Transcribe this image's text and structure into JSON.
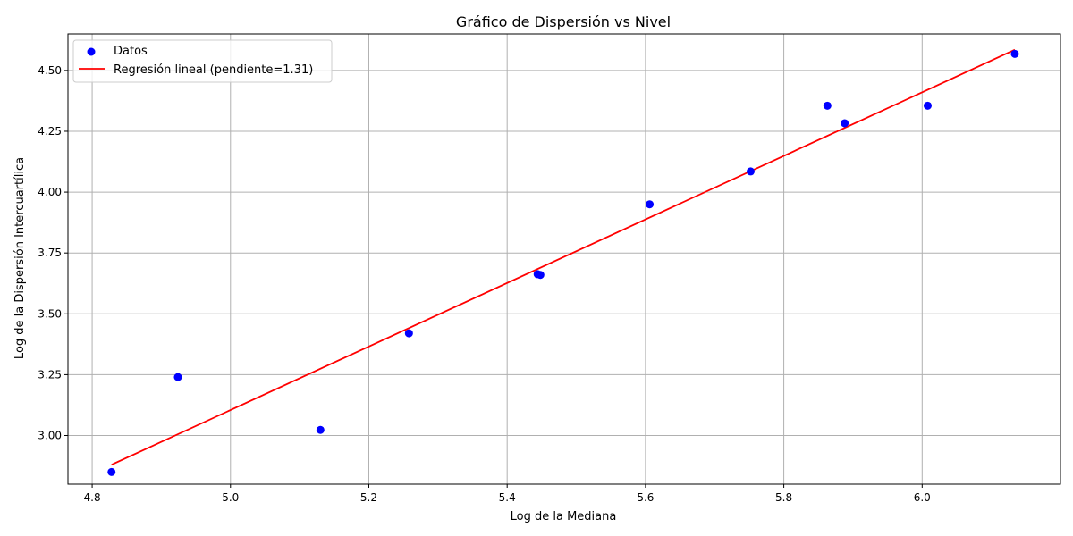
{
  "chart_data": {
    "type": "scatter",
    "title": "Gráfico de Dispersión vs Nivel",
    "xlabel": "Log de la Mediana",
    "ylabel": "Log de la Dispersión Intercuartílica",
    "xlim": [
      4.765,
      6.2
    ],
    "ylim": [
      2.8,
      4.65
    ],
    "xticks": [
      4.8,
      5.0,
      5.2,
      5.4,
      5.6,
      5.8,
      6.0
    ],
    "xtick_labels": [
      "4.8",
      "5.0",
      "5.2",
      "5.4",
      "5.6",
      "5.8",
      "6.0"
    ],
    "yticks": [
      3.0,
      3.25,
      3.5,
      3.75,
      4.0,
      4.25,
      4.5
    ],
    "ytick_labels": [
      "3.00",
      "3.25",
      "3.50",
      "3.75",
      "4.00",
      "4.25",
      "4.50"
    ],
    "grid": true,
    "legend_position": "top-left",
    "series": [
      {
        "name": "Datos",
        "kind": "scatter",
        "color": "#0000ff",
        "x": [
          4.828,
          4.924,
          5.13,
          5.258,
          5.444,
          5.448,
          5.606,
          5.752,
          5.863,
          5.888,
          6.008,
          6.134
        ],
        "y": [
          2.85,
          3.24,
          3.023,
          3.42,
          3.663,
          3.66,
          3.95,
          4.085,
          4.355,
          4.283,
          4.355,
          4.568
        ]
      },
      {
        "name": "Regresión lineal (pendiente=1.31)",
        "kind": "line",
        "color": "#ff0000",
        "x": [
          4.828,
          6.134
        ],
        "y": [
          2.88,
          4.585
        ]
      }
    ]
  }
}
